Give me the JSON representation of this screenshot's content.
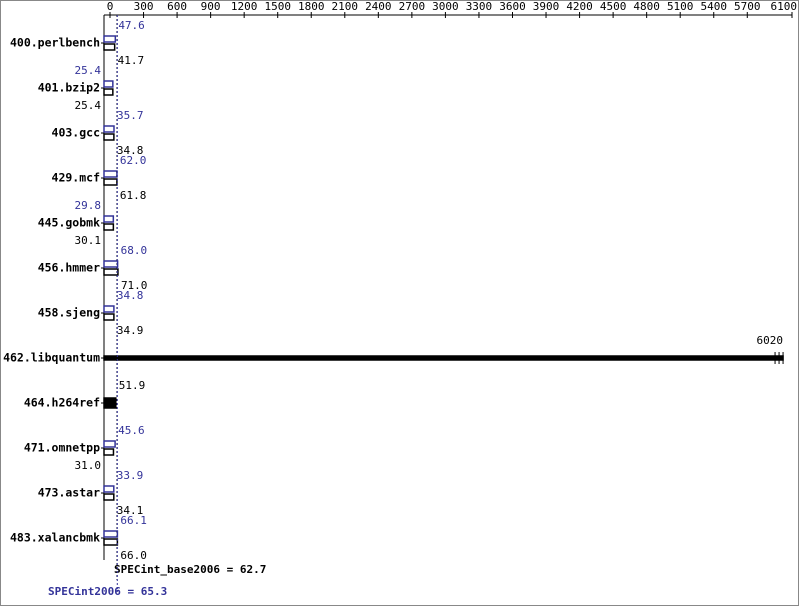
{
  "chart_data": {
    "type": "bar",
    "orientation": "horizontal",
    "categories": [
      "400.perlbench",
      "401.bzip2",
      "403.gcc",
      "429.mcf",
      "445.gobmk",
      "456.hmmer",
      "458.sjeng",
      "462.libquantum",
      "464.h264ref",
      "471.omnetpp",
      "473.astar",
      "483.xalancbmk"
    ],
    "series": [
      {
        "color": "#333399",
        "values": [
          47.6,
          25.4,
          35.7,
          62.0,
          29.8,
          68.0,
          34.8,
          null,
          null,
          45.6,
          33.9,
          66.1
        ],
        "value_labels": [
          "47.6",
          "25.4",
          "35.7",
          "62.0",
          "29.8",
          "68.0",
          "34.8",
          null,
          null,
          "45.6",
          "33.9",
          "66.1"
        ]
      },
      {
        "color": "#000000",
        "values": [
          41.7,
          25.4,
          34.8,
          61.8,
          30.1,
          71.0,
          34.9,
          6020,
          51.9,
          31.0,
          34.1,
          66.0
        ],
        "value_labels": [
          "41.7",
          "25.4",
          "34.8",
          "61.8",
          "30.1",
          "71.0",
          "34.9",
          "6020",
          "51.9",
          "31.0",
          "34.1",
          "66.0"
        ]
      }
    ],
    "xlim": [
      0,
      6100
    ],
    "xticks": [
      0,
      300,
      600,
      900,
      1200,
      1500,
      1800,
      2100,
      2400,
      2700,
      3000,
      3300,
      3600,
      3900,
      4200,
      4500,
      4800,
      5100,
      5400,
      5700,
      6100
    ],
    "summary": [
      {
        "label": "SPECint_base2006 = 62.7",
        "value": 62.7,
        "color": "#000000"
      },
      {
        "label": "SPECint2006 = 65.3",
        "value": 65.3,
        "color": "#333399"
      }
    ]
  }
}
